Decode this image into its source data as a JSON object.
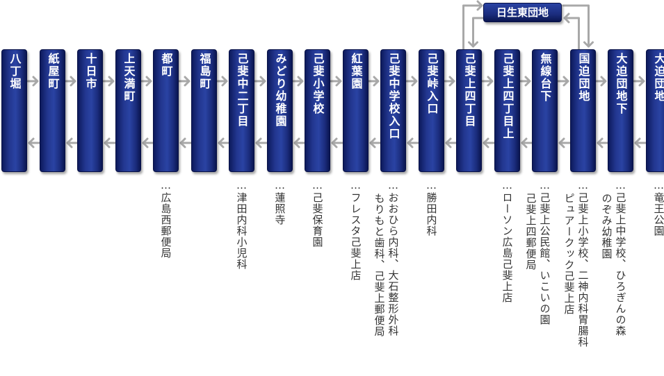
{
  "stops": [
    {
      "name": "八丁堀",
      "landmarks": []
    },
    {
      "name": "紙屋町",
      "landmarks": []
    },
    {
      "name": "十日市",
      "landmarks": []
    },
    {
      "name": "上天満町",
      "landmarks": []
    },
    {
      "name": "都町",
      "landmarks": [
        "…広島西郵便局"
      ]
    },
    {
      "name": "福島町",
      "landmarks": []
    },
    {
      "name": "己斐中二丁目",
      "landmarks": [
        "…津田内科小児科"
      ]
    },
    {
      "name": "みどり幼稚園",
      "landmarks": [
        "…蓮照寺"
      ]
    },
    {
      "name": "己斐小学校",
      "landmarks": [
        "…己斐保育園"
      ]
    },
    {
      "name": "紅葉園",
      "landmarks": [
        "…フレスタ己斐上店"
      ]
    },
    {
      "name": "己斐中学校入口",
      "landmarks": [
        "…おおひら内科、大石整形外科",
        "もりもと歯科、己斐上郵便局"
      ]
    },
    {
      "name": "己斐峠入口",
      "landmarks": [
        "…勝田内科"
      ]
    },
    {
      "name": "己斐上四丁目",
      "landmarks": []
    },
    {
      "name": "己斐上四丁目上",
      "landmarks": [
        "…ローソン広島己斐上店"
      ]
    },
    {
      "name": "無線台下",
      "landmarks": [
        "…己斐上公民館、いこいの園",
        "己斐上四郵便局"
      ]
    },
    {
      "name": "国迫団地",
      "landmarks": [
        "…己斐上小学校、二神内科胃腸科",
        "ピュアークック己斐上店"
      ]
    },
    {
      "name": "大迫団地下",
      "landmarks": [
        "…己斐上中学校、ひろぎんの森",
        "のぞみ幼稚園"
      ]
    },
    {
      "name": "大迫団地",
      "landmarks": [
        "…竜王公園"
      ]
    }
  ],
  "branch": {
    "name": "日生東団地"
  },
  "colors": {
    "stop_fill": "#22368f",
    "arrow": "#a8a8a8",
    "landmark_text": "#333333"
  }
}
